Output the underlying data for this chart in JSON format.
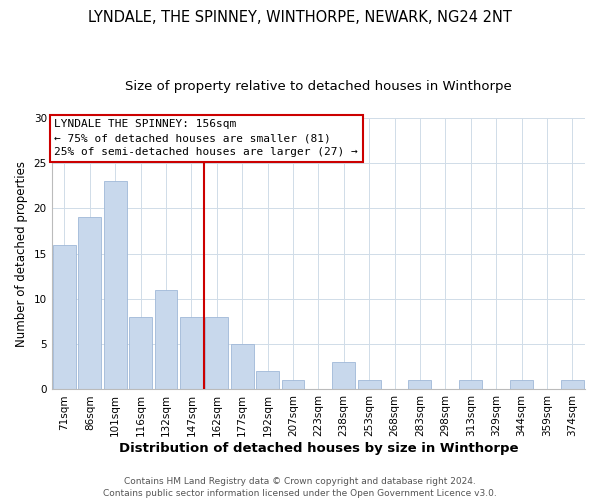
{
  "title": "LYNDALE, THE SPINNEY, WINTHORPE, NEWARK, NG24 2NT",
  "subtitle": "Size of property relative to detached houses in Winthorpe",
  "xlabel": "Distribution of detached houses by size in Winthorpe",
  "ylabel": "Number of detached properties",
  "bar_labels": [
    "71sqm",
    "86sqm",
    "101sqm",
    "116sqm",
    "132sqm",
    "147sqm",
    "162sqm",
    "177sqm",
    "192sqm",
    "207sqm",
    "223sqm",
    "238sqm",
    "253sqm",
    "268sqm",
    "283sqm",
    "298sqm",
    "313sqm",
    "329sqm",
    "344sqm",
    "359sqm",
    "374sqm"
  ],
  "bar_values": [
    16,
    19,
    23,
    8,
    11,
    8,
    8,
    5,
    2,
    1,
    0,
    3,
    1,
    0,
    1,
    0,
    1,
    0,
    1,
    0,
    1
  ],
  "bar_color": "#c8d8ec",
  "bar_edge_color": "#a0b8d8",
  "vline_x": 5.5,
  "vline_color": "#cc0000",
  "annotation_title": "LYNDALE THE SPINNEY: 156sqm",
  "annotation_line1": "← 75% of detached houses are smaller (81)",
  "annotation_line2": "25% of semi-detached houses are larger (27) →",
  "annotation_box_facecolor": "#ffffff",
  "annotation_box_edgecolor": "#cc0000",
  "ylim": [
    0,
    30
  ],
  "yticks": [
    0,
    5,
    10,
    15,
    20,
    25,
    30
  ],
  "grid_color": "#d0dce8",
  "fig_background": "#ffffff",
  "plot_background": "#ffffff",
  "footer_line1": "Contains HM Land Registry data © Crown copyright and database right 2024.",
  "footer_line2": "Contains public sector information licensed under the Open Government Licence v3.0.",
  "title_fontsize": 10.5,
  "subtitle_fontsize": 9.5,
  "xlabel_fontsize": 9.5,
  "ylabel_fontsize": 8.5,
  "tick_fontsize": 7.5,
  "annotation_fontsize": 8,
  "footer_fontsize": 6.5
}
